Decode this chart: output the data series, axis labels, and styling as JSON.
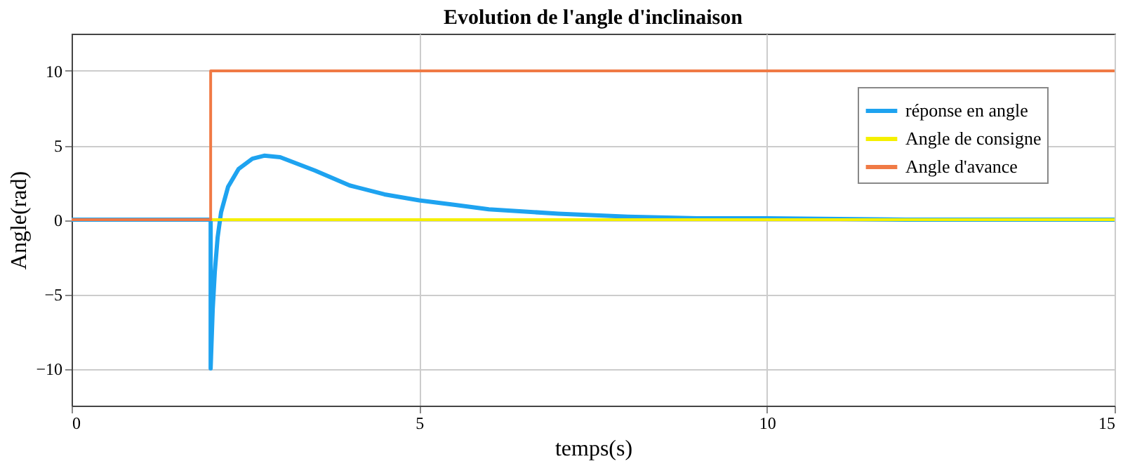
{
  "chart_data": {
    "type": "line",
    "title": "Evolution de l'angle d'inclinaison",
    "xlabel": "temps(s)",
    "ylabel": "Angle(rad)",
    "xlim": [
      0,
      15
    ],
    "xticks": [
      0,
      5,
      10,
      15
    ],
    "ylim": [
      -12.5,
      12.5
    ],
    "yticks": [
      -10,
      -5,
      0,
      5,
      10
    ],
    "grid": true,
    "legend": "top right",
    "line_style": "solid",
    "marker": "none",
    "series": [
      {
        "name": "réponse en angle",
        "color": "#1ea3f0",
        "x": [
          0,
          2,
          2,
          2.03,
          2.06,
          2.1,
          2.15,
          2.25,
          2.4,
          2.6,
          2.77,
          3.0,
          3.5,
          4.0,
          4.5,
          5,
          5.5,
          6,
          7,
          8,
          9,
          10,
          12,
          15
        ],
        "values": [
          0,
          0,
          -10,
          -6,
          -3.5,
          -1.2,
          0.5,
          2.2,
          3.4,
          4.1,
          4.3,
          4.2,
          3.3,
          2.3,
          1.7,
          1.3,
          1.0,
          0.7,
          0.4,
          0.2,
          0.1,
          0.1,
          0,
          0
        ]
      },
      {
        "name": "Angle de consigne",
        "color": "#f5f000",
        "x": [
          0,
          15
        ],
        "values": [
          0,
          0
        ]
      },
      {
        "name": "Angle d'avance",
        "color": "#f07a45",
        "x": [
          0,
          2,
          2,
          15
        ],
        "values": [
          0,
          0,
          10,
          10
        ]
      }
    ]
  }
}
